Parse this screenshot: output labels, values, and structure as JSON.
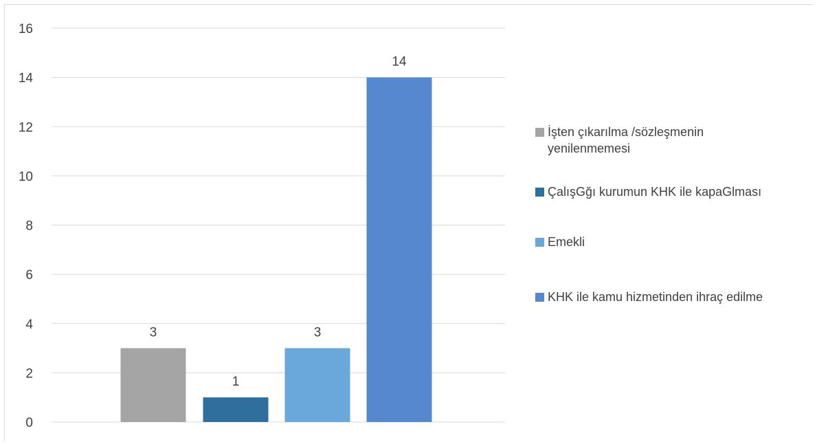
{
  "chart_data": {
    "type": "bar",
    "categories": [
      "İşten çıkarılma /sözleşmenin yenilenmemesi",
      "ÇalışGğı kurumun KHK ile kapaGlması",
      "Emekli",
      "KHK ile kamu hizmetinden ihraç edilme"
    ],
    "values": [
      3,
      1,
      3,
      14
    ],
    "colors": [
      "#a5a5a5",
      "#2e6f9e",
      "#6aa8dc",
      "#5588cf"
    ],
    "yticks": [
      "0",
      "2",
      "4",
      "6",
      "8",
      "10",
      "12",
      "14",
      "16"
    ],
    "ylim": [
      0,
      16
    ],
    "grid": true,
    "legend_position": "right",
    "data_labels": [
      "3",
      "1",
      "3",
      "14"
    ]
  },
  "colors": {
    "grid": "#d9d9d9",
    "text": "#404040"
  }
}
